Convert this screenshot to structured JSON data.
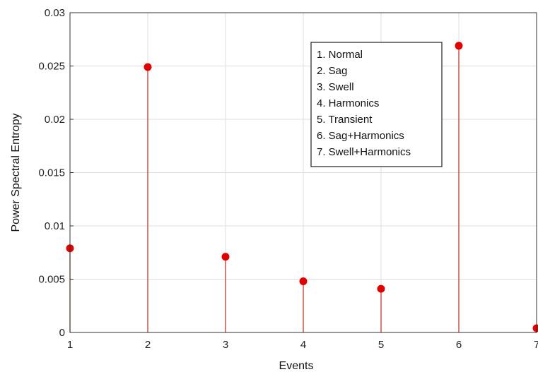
{
  "chart_data": {
    "type": "stem",
    "xlabel": "Events",
    "ylabel": "Power Spectral Entropy",
    "xlim": [
      1,
      7
    ],
    "ylim": [
      0,
      0.03
    ],
    "grid": true,
    "x_ticks": [
      "1",
      "2",
      "3",
      "4",
      "5",
      "6",
      "7"
    ],
    "y_ticks": [
      "0",
      "0.005",
      "0.01",
      "0.015",
      "0.02",
      "0.025",
      "0.03"
    ],
    "points": [
      {
        "x": 1,
        "y": 0.0079
      },
      {
        "x": 2,
        "y": 0.0249
      },
      {
        "x": 3,
        "y": 0.0071
      },
      {
        "x": 4,
        "y": 0.0048
      },
      {
        "x": 5,
        "y": 0.0041
      },
      {
        "x": 6,
        "y": 0.0269
      },
      {
        "x": 7,
        "y": 0.0004
      }
    ],
    "legend": {
      "placement": "top-right",
      "entries": [
        "1. Normal",
        "2. Sag",
        "3. Swell",
        "4. Harmonics",
        "5. Transient",
        "6. Sag+Harmonics",
        "7. Swell+Harmonics"
      ]
    },
    "colors": {
      "stem": "#c0392b",
      "marker": "#e00000",
      "grid": "#dcdcdc",
      "axis": "#333333"
    }
  }
}
